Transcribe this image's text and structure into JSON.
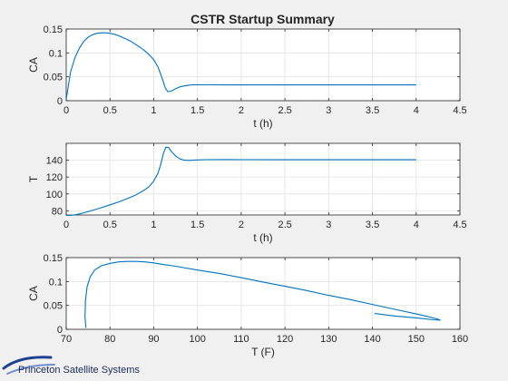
{
  "chart_data": [
    {
      "type": "line",
      "title": "CSTR Startup Summary",
      "xlabel": "t (h)",
      "ylabel": "CA",
      "xlim": [
        0,
        4.5
      ],
      "ylim": [
        0,
        0.15
      ],
      "grid": true,
      "xticks": [
        "0",
        "0.5",
        "1",
        "1.5",
        "2",
        "2.5",
        "3",
        "3.5",
        "4",
        "4.5"
      ],
      "yticks": [
        "0",
        "0.05",
        "0.1",
        "0.15"
      ],
      "color": "#0072bd",
      "x": [
        0,
        0.05,
        0.1,
        0.15,
        0.2,
        0.25,
        0.3,
        0.35,
        0.4,
        0.45,
        0.5,
        0.55,
        0.6,
        0.65,
        0.7,
        0.75,
        0.8,
        0.85,
        0.9,
        0.95,
        1.0,
        1.05,
        1.1,
        1.13,
        1.16,
        1.2,
        1.25,
        1.3,
        1.35,
        1.4,
        1.45,
        1.5,
        1.6,
        1.7,
        1.8,
        2.0,
        2.5,
        3.0,
        3.5,
        4.0
      ],
      "y": [
        0.003,
        0.06,
        0.09,
        0.11,
        0.124,
        0.133,
        0.138,
        0.141,
        0.142,
        0.142,
        0.141,
        0.139,
        0.136,
        0.132,
        0.128,
        0.123,
        0.117,
        0.111,
        0.104,
        0.096,
        0.086,
        0.07,
        0.045,
        0.028,
        0.019,
        0.02,
        0.025,
        0.029,
        0.031,
        0.0325,
        0.0332,
        0.0334,
        0.0333,
        0.0332,
        0.0331,
        0.033,
        0.033,
        0.033,
        0.033,
        0.033
      ]
    },
    {
      "type": "line",
      "title": "",
      "xlabel": "t (h)",
      "ylabel": "T",
      "xlim": [
        0,
        4.5
      ],
      "ylim": [
        75,
        160
      ],
      "grid": true,
      "xticks": [
        "0",
        "0.5",
        "1",
        "1.5",
        "2",
        "2.5",
        "3",
        "3.5",
        "4",
        "4.5"
      ],
      "yticks": [
        "80",
        "100",
        "120",
        "140"
      ],
      "color": "#0072bd",
      "x": [
        0,
        0.05,
        0.1,
        0.15,
        0.2,
        0.3,
        0.4,
        0.5,
        0.6,
        0.7,
        0.8,
        0.9,
        0.95,
        1.0,
        1.05,
        1.08,
        1.11,
        1.14,
        1.17,
        1.2,
        1.25,
        1.3,
        1.35,
        1.4,
        1.45,
        1.5,
        1.6,
        1.8,
        2.0,
        2.5,
        3.0,
        3.5,
        4.0
      ],
      "y": [
        74.5,
        74.6,
        75.2,
        76.3,
        77.6,
        80.5,
        83.6,
        87.0,
        90.5,
        94.5,
        99.0,
        105.0,
        109.0,
        115.0,
        125.0,
        135.0,
        148.0,
        155.5,
        155.0,
        150.5,
        145.0,
        141.5,
        140.0,
        139.8,
        140.0,
        140.3,
        140.6,
        140.7,
        140.6,
        140.5,
        140.5,
        140.5,
        140.5
      ]
    },
    {
      "type": "line",
      "title": "",
      "xlabel": "T (F)",
      "ylabel": "CA",
      "xlim": [
        70,
        160
      ],
      "ylim": [
        0,
        0.15
      ],
      "grid": true,
      "xticks": [
        "70",
        "80",
        "90",
        "100",
        "110",
        "120",
        "130",
        "140",
        "150",
        "160"
      ],
      "yticks": [
        "0",
        "0.05",
        "0.1",
        "0.15"
      ],
      "color": "#0072bd",
      "x": [
        74.5,
        74.3,
        74.4,
        74.8,
        75.5,
        76.5,
        78.0,
        80.0,
        82.0,
        84.0,
        86.0,
        88.0,
        90.0,
        92.0,
        95.0,
        100.0,
        105.0,
        110.0,
        115.0,
        120.0,
        125.0,
        130.0,
        135.0,
        140.0,
        145.0,
        150.0,
        153.0,
        155.0,
        155.5,
        154.0,
        150.0,
        145.0,
        140.5
      ],
      "y": [
        0.003,
        0.025,
        0.06,
        0.09,
        0.11,
        0.124,
        0.133,
        0.138,
        0.141,
        0.142,
        0.142,
        0.141,
        0.139,
        0.136,
        0.132,
        0.124,
        0.117,
        0.108,
        0.099,
        0.09,
        0.081,
        0.071,
        0.062,
        0.052,
        0.042,
        0.032,
        0.026,
        0.021,
        0.019,
        0.02,
        0.024,
        0.028,
        0.033
      ]
    }
  ],
  "logo": {
    "text": "Princeton Satellite Systems",
    "color": "#1f3f8f"
  }
}
